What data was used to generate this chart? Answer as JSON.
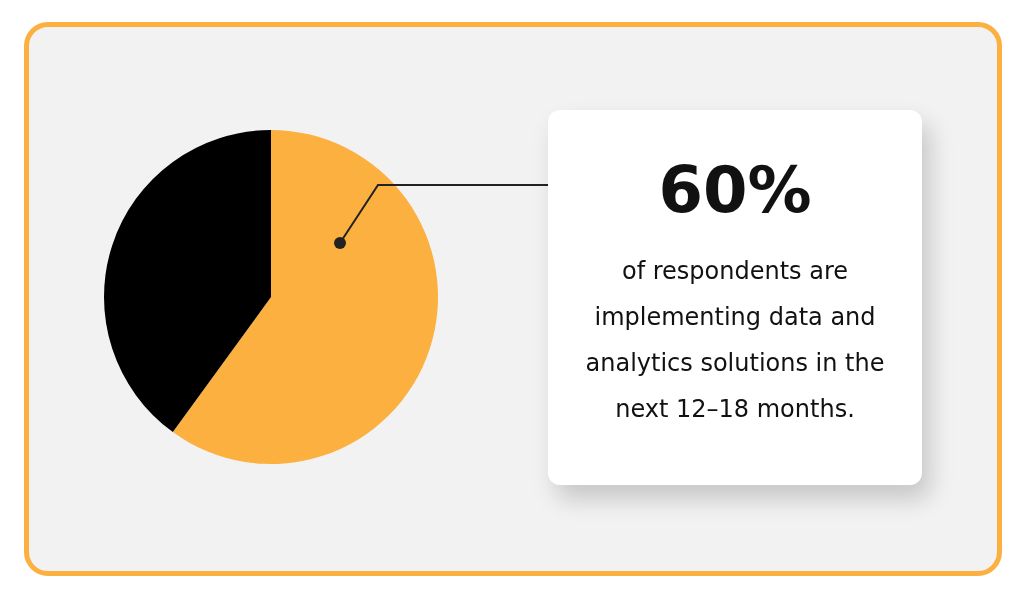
{
  "chart_data": {
    "type": "pie",
    "categories": [
      null,
      null
    ],
    "values": [
      60,
      40
    ],
    "colors": [
      "#fbb040",
      "#000000"
    ],
    "annotations": [
      "60%",
      "of respondents are implementing data and analytics solutions in the next 12–18 months."
    ]
  }
}
